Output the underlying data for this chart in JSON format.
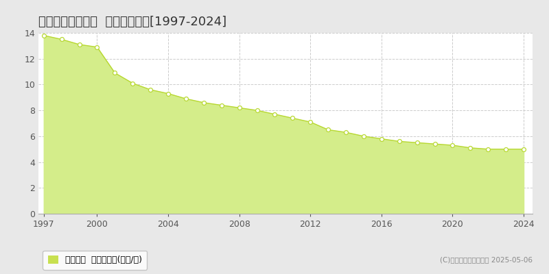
{
  "title": "邑楽郡邑楽町石打  基準地価推移[1997-2024]",
  "years": [
    1997,
    1998,
    1999,
    2000,
    2001,
    2002,
    2003,
    2004,
    2005,
    2006,
    2007,
    2008,
    2009,
    2010,
    2011,
    2012,
    2013,
    2014,
    2015,
    2016,
    2017,
    2018,
    2019,
    2020,
    2021,
    2022,
    2023,
    2024
  ],
  "values": [
    13.8,
    13.5,
    13.1,
    12.9,
    10.9,
    10.1,
    9.6,
    9.3,
    8.9,
    8.6,
    8.4,
    8.2,
    8.0,
    7.7,
    7.4,
    7.1,
    6.5,
    6.3,
    6.0,
    5.8,
    5.6,
    5.5,
    5.4,
    5.3,
    5.1,
    5.0,
    5.0,
    5.0
  ],
  "fill_color": "#d4ed8a",
  "line_color": "#b8d832",
  "marker_facecolor": "#ffffff",
  "marker_edgecolor": "#b8d832",
  "grid_color": "#cccccc",
  "figure_bg_color": "#e8e8e8",
  "plot_bg_color": "#ffffff",
  "ylim": [
    0,
    14
  ],
  "yticks": [
    0,
    2,
    4,
    6,
    8,
    10,
    12,
    14
  ],
  "xticks": [
    1997,
    2000,
    2004,
    2008,
    2012,
    2016,
    2020,
    2024
  ],
  "xlim_left": 1996.7,
  "xlim_right": 2024.5,
  "legend_label": "基準地価  平均坪単価(万円/坪)",
  "legend_patch_color": "#c8e050",
  "copyright_text": "(C)土地価格ドットコム 2025-05-06",
  "title_fontsize": 13,
  "tick_fontsize": 9,
  "legend_fontsize": 9,
  "copyright_fontsize": 7.5
}
